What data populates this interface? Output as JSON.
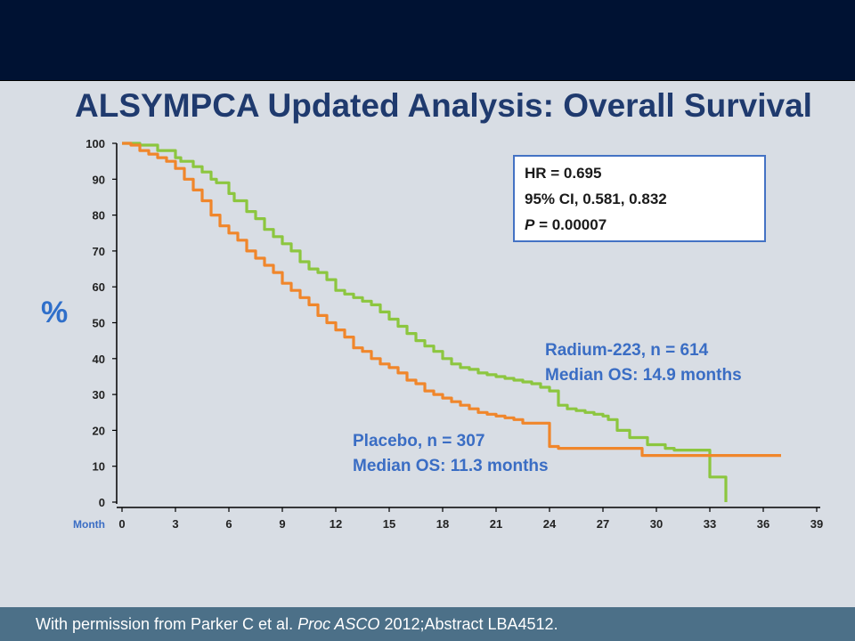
{
  "title": "ALSYMPCA Updated Analysis: Overall Survival",
  "stats": {
    "hr": "HR = 0.695",
    "ci": "95% CI, 0.581, 0.832",
    "p_label": "P",
    "p_value": " = 0.00007"
  },
  "footer": {
    "prefix": "With permission from Parker C et al. ",
    "journal": "Proc ASCO",
    "suffix": " 2012;Abstract LBA4512."
  },
  "chart_data": {
    "type": "line",
    "title": "ALSYMPCA Updated Analysis: Overall Survival",
    "xlabel": "Month",
    "ylabel": "%",
    "xlim": [
      0,
      39
    ],
    "ylim": [
      0,
      100
    ],
    "x_ticks": [
      0,
      3,
      6,
      9,
      12,
      15,
      18,
      21,
      24,
      27,
      30,
      33,
      36,
      39
    ],
    "y_ticks": [
      0,
      10,
      20,
      30,
      40,
      50,
      60,
      70,
      80,
      90,
      100
    ],
    "series": [
      {
        "name": "Radium-223, n = 614",
        "label_line2": "Median OS: 14.9 months",
        "color": "#8cc63f",
        "x": [
          0,
          0.5,
          1,
          2,
          3,
          3.3,
          4,
          4.5,
          5,
          5.3,
          6,
          6.3,
          7,
          7.5,
          8,
          8.5,
          9,
          9.5,
          10,
          10.5,
          11,
          11.5,
          12,
          12.5,
          13,
          13.5,
          14,
          14.5,
          15,
          15.5,
          16,
          16.5,
          17,
          17.5,
          18,
          18.5,
          19,
          19.5,
          20,
          20.5,
          21,
          21.5,
          22,
          22.5,
          23,
          23.5,
          24,
          24.5,
          25,
          25.5,
          26,
          26.5,
          27,
          27.3,
          27.8,
          28.5,
          29.5,
          30.5,
          31,
          32,
          32.9,
          33,
          33.9,
          33.9
        ],
        "y": [
          100,
          100,
          99.5,
          98,
          96,
          95,
          93.5,
          92,
          90,
          89,
          86,
          84,
          81,
          79,
          76,
          74,
          72,
          70,
          67,
          65,
          64,
          62,
          59,
          58,
          57,
          56,
          55,
          53,
          51,
          49,
          47,
          45,
          43.5,
          42,
          40,
          38.5,
          37.5,
          37,
          36,
          35.5,
          35,
          34.5,
          34,
          33.5,
          33,
          32,
          31,
          27,
          26,
          25.5,
          25,
          24.5,
          24,
          23,
          20,
          18,
          16,
          15,
          14.5,
          14.5,
          14.5,
          7,
          7,
          0
        ]
      },
      {
        "name": "Placebo, n = 307",
        "label_line2": "Median OS: 11.3 months",
        "color": "#f0862b",
        "x": [
          0,
          0.5,
          1,
          1.5,
          2,
          2.5,
          3,
          3.5,
          4,
          4.5,
          5,
          5.5,
          6,
          6.5,
          7,
          7.5,
          8,
          8.5,
          9,
          9.5,
          10,
          10.5,
          11,
          11.5,
          12,
          12.5,
          13,
          13.5,
          14,
          14.5,
          15,
          15.5,
          16,
          16.5,
          17,
          17.5,
          18,
          18.5,
          19,
          19.5,
          20,
          20.5,
          21,
          21.5,
          22,
          22.5,
          23,
          23.5,
          24,
          24.5,
          25,
          26,
          27,
          28,
          29,
          29.2,
          30,
          31,
          32,
          33,
          34,
          35,
          36,
          37
        ],
        "y": [
          100,
          99.5,
          98,
          97,
          96,
          95,
          93,
          90,
          87,
          84,
          80,
          77,
          75,
          73,
          70,
          68,
          66,
          64,
          61,
          59,
          57,
          55,
          52,
          50,
          48,
          46,
          43,
          42,
          40,
          38.5,
          37.5,
          36,
          34,
          33,
          31,
          30,
          29,
          28,
          27,
          26,
          25,
          24.5,
          24,
          23.5,
          23,
          22,
          22,
          22,
          15.5,
          15,
          15,
          15,
          15,
          15,
          15,
          13,
          13,
          13,
          13,
          13,
          13,
          13,
          13,
          13
        ]
      }
    ]
  }
}
